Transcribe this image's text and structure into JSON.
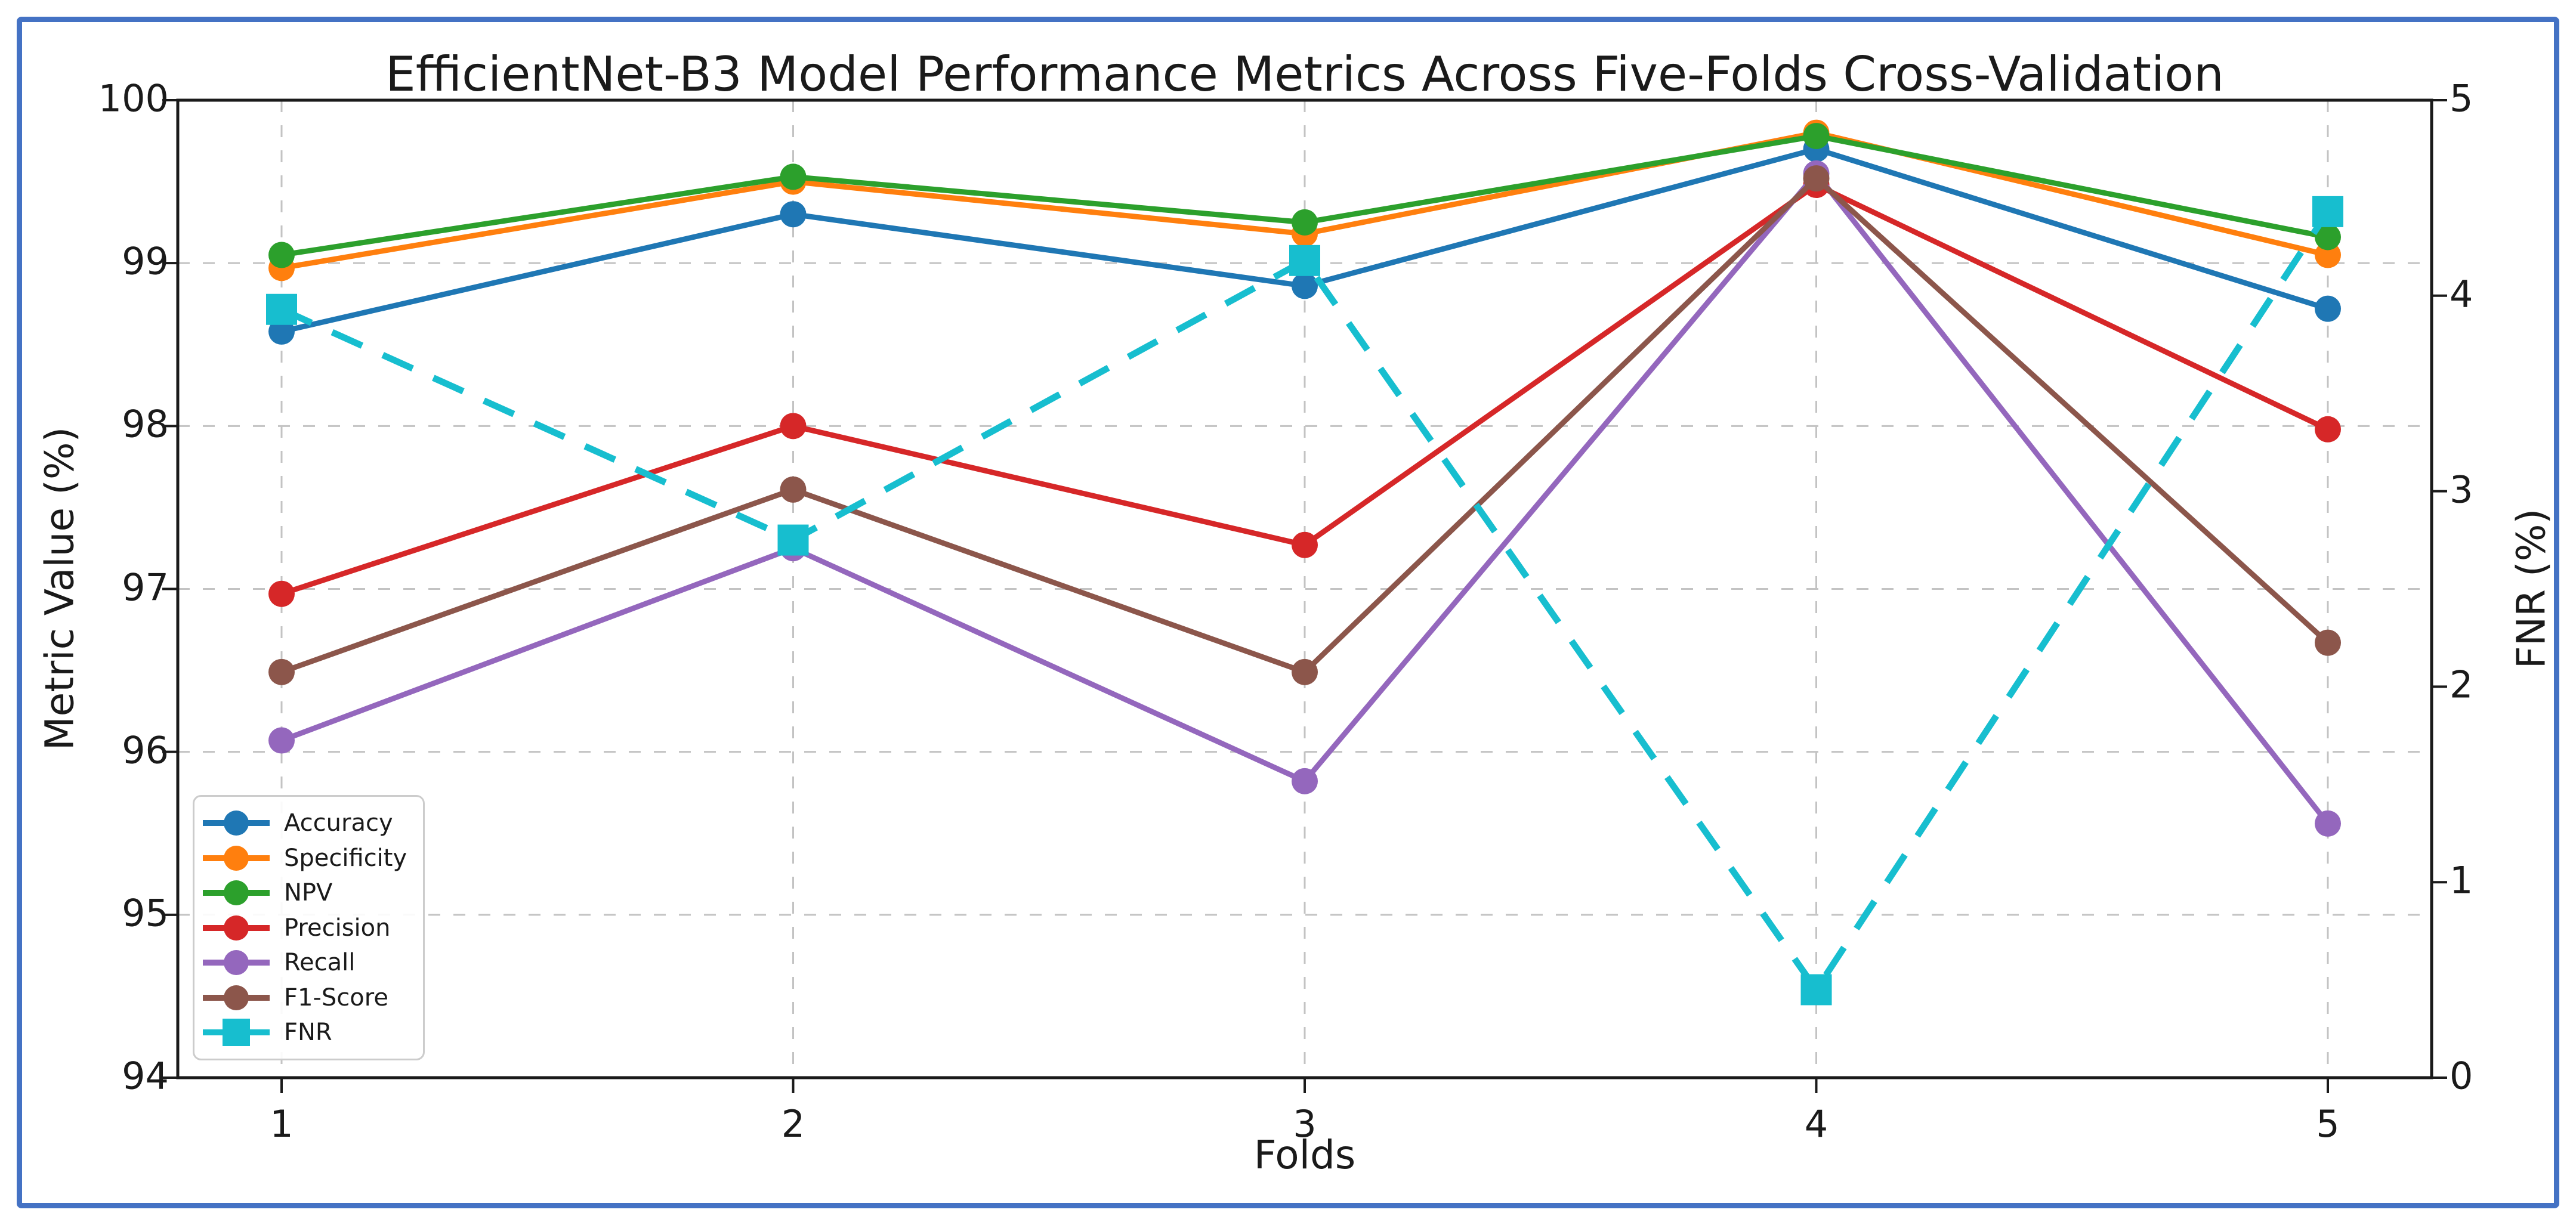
{
  "chart_data": {
    "type": "line",
    "title": "EfficientNet-B3 Model Performance Metrics Across Five-Folds Cross-Validation",
    "xlabel": "Folds",
    "ylabel_left": "Metric Value (%)",
    "ylabel_right": "FNR (%)",
    "x": [
      1,
      2,
      3,
      4,
      5
    ],
    "xticks": [
      "1",
      "2",
      "3",
      "4",
      "5"
    ],
    "ylim_left": [
      94,
      100
    ],
    "yticks_left": [
      "94",
      "95",
      "96",
      "97",
      "98",
      "99",
      "100"
    ],
    "ylim_right": [
      0,
      5
    ],
    "yticks_right": [
      "0",
      "1",
      "2",
      "3",
      "4",
      "5"
    ],
    "grid": true,
    "legend_position": "lower left",
    "series": [
      {
        "name": "Accuracy",
        "color": "#1f77b4",
        "axis": "left",
        "marker": "circle",
        "line": "solid",
        "values": [
          98.58,
          99.3,
          98.86,
          99.7,
          98.72
        ]
      },
      {
        "name": "Specificity",
        "color": "#ff7f0e",
        "axis": "left",
        "marker": "circle",
        "line": "solid",
        "values": [
          98.97,
          99.5,
          99.18,
          99.8,
          99.05
        ]
      },
      {
        "name": "NPV",
        "color": "#2ca02c",
        "axis": "left",
        "marker": "circle",
        "line": "solid",
        "values": [
          99.05,
          99.53,
          99.25,
          99.78,
          99.16
        ]
      },
      {
        "name": "Precision",
        "color": "#d62728",
        "axis": "left",
        "marker": "circle",
        "line": "solid",
        "values": [
          96.97,
          98.0,
          97.27,
          99.48,
          97.98
        ]
      },
      {
        "name": "Recall",
        "color": "#9467bd",
        "axis": "left",
        "marker": "circle",
        "line": "solid",
        "values": [
          96.07,
          97.25,
          95.82,
          99.55,
          95.56
        ]
      },
      {
        "name": "F1-Score",
        "color": "#8c564b",
        "axis": "left",
        "marker": "circle",
        "line": "solid",
        "values": [
          96.49,
          97.61,
          96.49,
          99.52,
          96.67
        ]
      },
      {
        "name": "FNR",
        "color": "#17becf",
        "axis": "right",
        "marker": "square",
        "line": "dashed",
        "values": [
          3.93,
          2.75,
          4.18,
          0.45,
          4.43
        ]
      }
    ],
    "colors": {
      "frame_border": "#4472C4",
      "grid": "#c3c3c3",
      "spine": "#1a1a1a",
      "text": "#1a1a1a"
    }
  }
}
